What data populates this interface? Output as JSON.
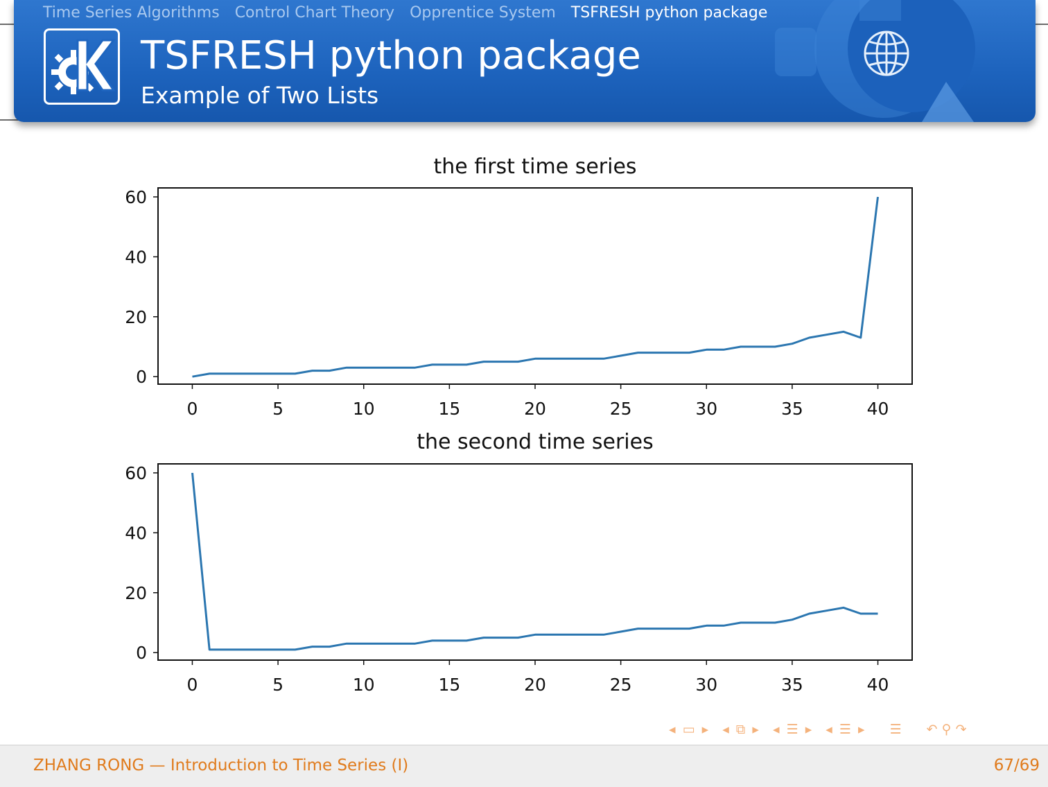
{
  "header": {
    "nav": [
      {
        "label": "Time Series Algorithms",
        "active": false
      },
      {
        "label": "Control Chart Theory",
        "active": false
      },
      {
        "label": "Opprentice System",
        "active": false
      },
      {
        "label": "TSFRESH python package",
        "active": true
      }
    ],
    "title": "TSFRESH python package",
    "subtitle": "Example of Two Lists",
    "logo_icon": "kde-logo-icon",
    "globe_icon": "globe-icon"
  },
  "chart_data": [
    {
      "type": "line",
      "title": "the first time series",
      "xlabel": "",
      "ylabel": "",
      "x_ticks": [
        0,
        5,
        10,
        15,
        20,
        25,
        30,
        35,
        40
      ],
      "y_ticks": [
        0,
        20,
        40,
        60
      ],
      "xlim": [
        -2,
        42
      ],
      "ylim": [
        -2.5,
        63
      ],
      "line_color": "#2b76b0",
      "series": [
        {
          "values": [
            0,
            1,
            1,
            1,
            1,
            1,
            1,
            2,
            2,
            3,
            3,
            3,
            3,
            3,
            4,
            4,
            4,
            5,
            5,
            5,
            6,
            6,
            6,
            6,
            6,
            7,
            8,
            8,
            8,
            8,
            9,
            9,
            10,
            10,
            10,
            11,
            13,
            14,
            15,
            13,
            60
          ]
        }
      ]
    },
    {
      "type": "line",
      "title": "the second time series",
      "xlabel": "",
      "ylabel": "",
      "x_ticks": [
        0,
        5,
        10,
        15,
        20,
        25,
        30,
        35,
        40
      ],
      "y_ticks": [
        0,
        20,
        40,
        60
      ],
      "xlim": [
        -2,
        42
      ],
      "ylim": [
        -2.5,
        63
      ],
      "line_color": "#2b76b0",
      "series": [
        {
          "values": [
            60,
            1,
            1,
            1,
            1,
            1,
            1,
            2,
            2,
            3,
            3,
            3,
            3,
            3,
            4,
            4,
            4,
            5,
            5,
            5,
            6,
            6,
            6,
            6,
            6,
            7,
            8,
            8,
            8,
            8,
            9,
            9,
            10,
            10,
            10,
            11,
            13,
            14,
            15,
            13,
            13
          ]
        }
      ]
    }
  ],
  "footer": {
    "left": "ZHANG RONG — Introduction to Time Series (I)",
    "right": "67/69",
    "nav_icons": [
      "nav-prev-frame-icon",
      "nav-frame-icon",
      "nav-next-frame-icon",
      "nav-prev-subsection-icon",
      "nav-subsection-icon",
      "nav-next-subsection-icon",
      "nav-prev-section-icon",
      "nav-section-icon",
      "nav-next-section-icon",
      "nav-prev-part-icon",
      "nav-part-icon",
      "nav-next-part-icon",
      "nav-toc-icon",
      "nav-back-icon",
      "nav-search-icon",
      "nav-forward-icon"
    ]
  }
}
